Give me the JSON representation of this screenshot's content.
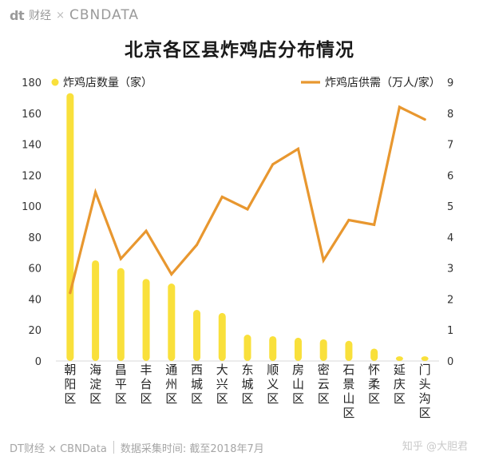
{
  "header": {
    "brand_dt": "dt",
    "brand_cn": "财经",
    "brand_x": "×",
    "brand_cbn": "CBNDATA"
  },
  "footer": {
    "source": "DT财经 × CBNData",
    "note": "数据采集时间: 截至2018年7月"
  },
  "watermark": "知乎 @大胆君",
  "chart_data": {
    "type": "bar",
    "title": "北京各区县炸鸡店分布情况",
    "categories": [
      "朝阳区",
      "海淀区",
      "昌平区",
      "丰台区",
      "通州区",
      "西城区",
      "大兴区",
      "东城区",
      "顺义区",
      "房山区",
      "密云区",
      "石景山区",
      "怀柔区",
      "延庆区",
      "门头沟区"
    ],
    "series": [
      {
        "name": "炸鸡店数量（家）",
        "type": "bar",
        "axis": "left",
        "color": "#f9e03b",
        "values": [
          173,
          65,
          60,
          53,
          50,
          33,
          31,
          17,
          16,
          15,
          14,
          13,
          8,
          3,
          3
        ]
      },
      {
        "name": "炸鸡店供需（万人/家）",
        "type": "line",
        "axis": "right",
        "color": "#e8972f",
        "values": [
          2.2,
          5.45,
          3.3,
          4.2,
          2.8,
          3.75,
          5.3,
          4.9,
          6.35,
          6.85,
          3.25,
          4.55,
          4.4,
          8.2,
          7.8
        ]
      }
    ],
    "left_axis": {
      "ylim": [
        0,
        180
      ],
      "ticks": [
        0,
        20,
        40,
        60,
        80,
        100,
        120,
        140,
        160,
        180
      ]
    },
    "right_axis": {
      "ylim": [
        0,
        9
      ],
      "ticks": [
        0,
        1,
        2,
        3,
        4,
        5,
        6,
        7,
        8,
        9
      ]
    },
    "grid": false,
    "legend": "top"
  }
}
